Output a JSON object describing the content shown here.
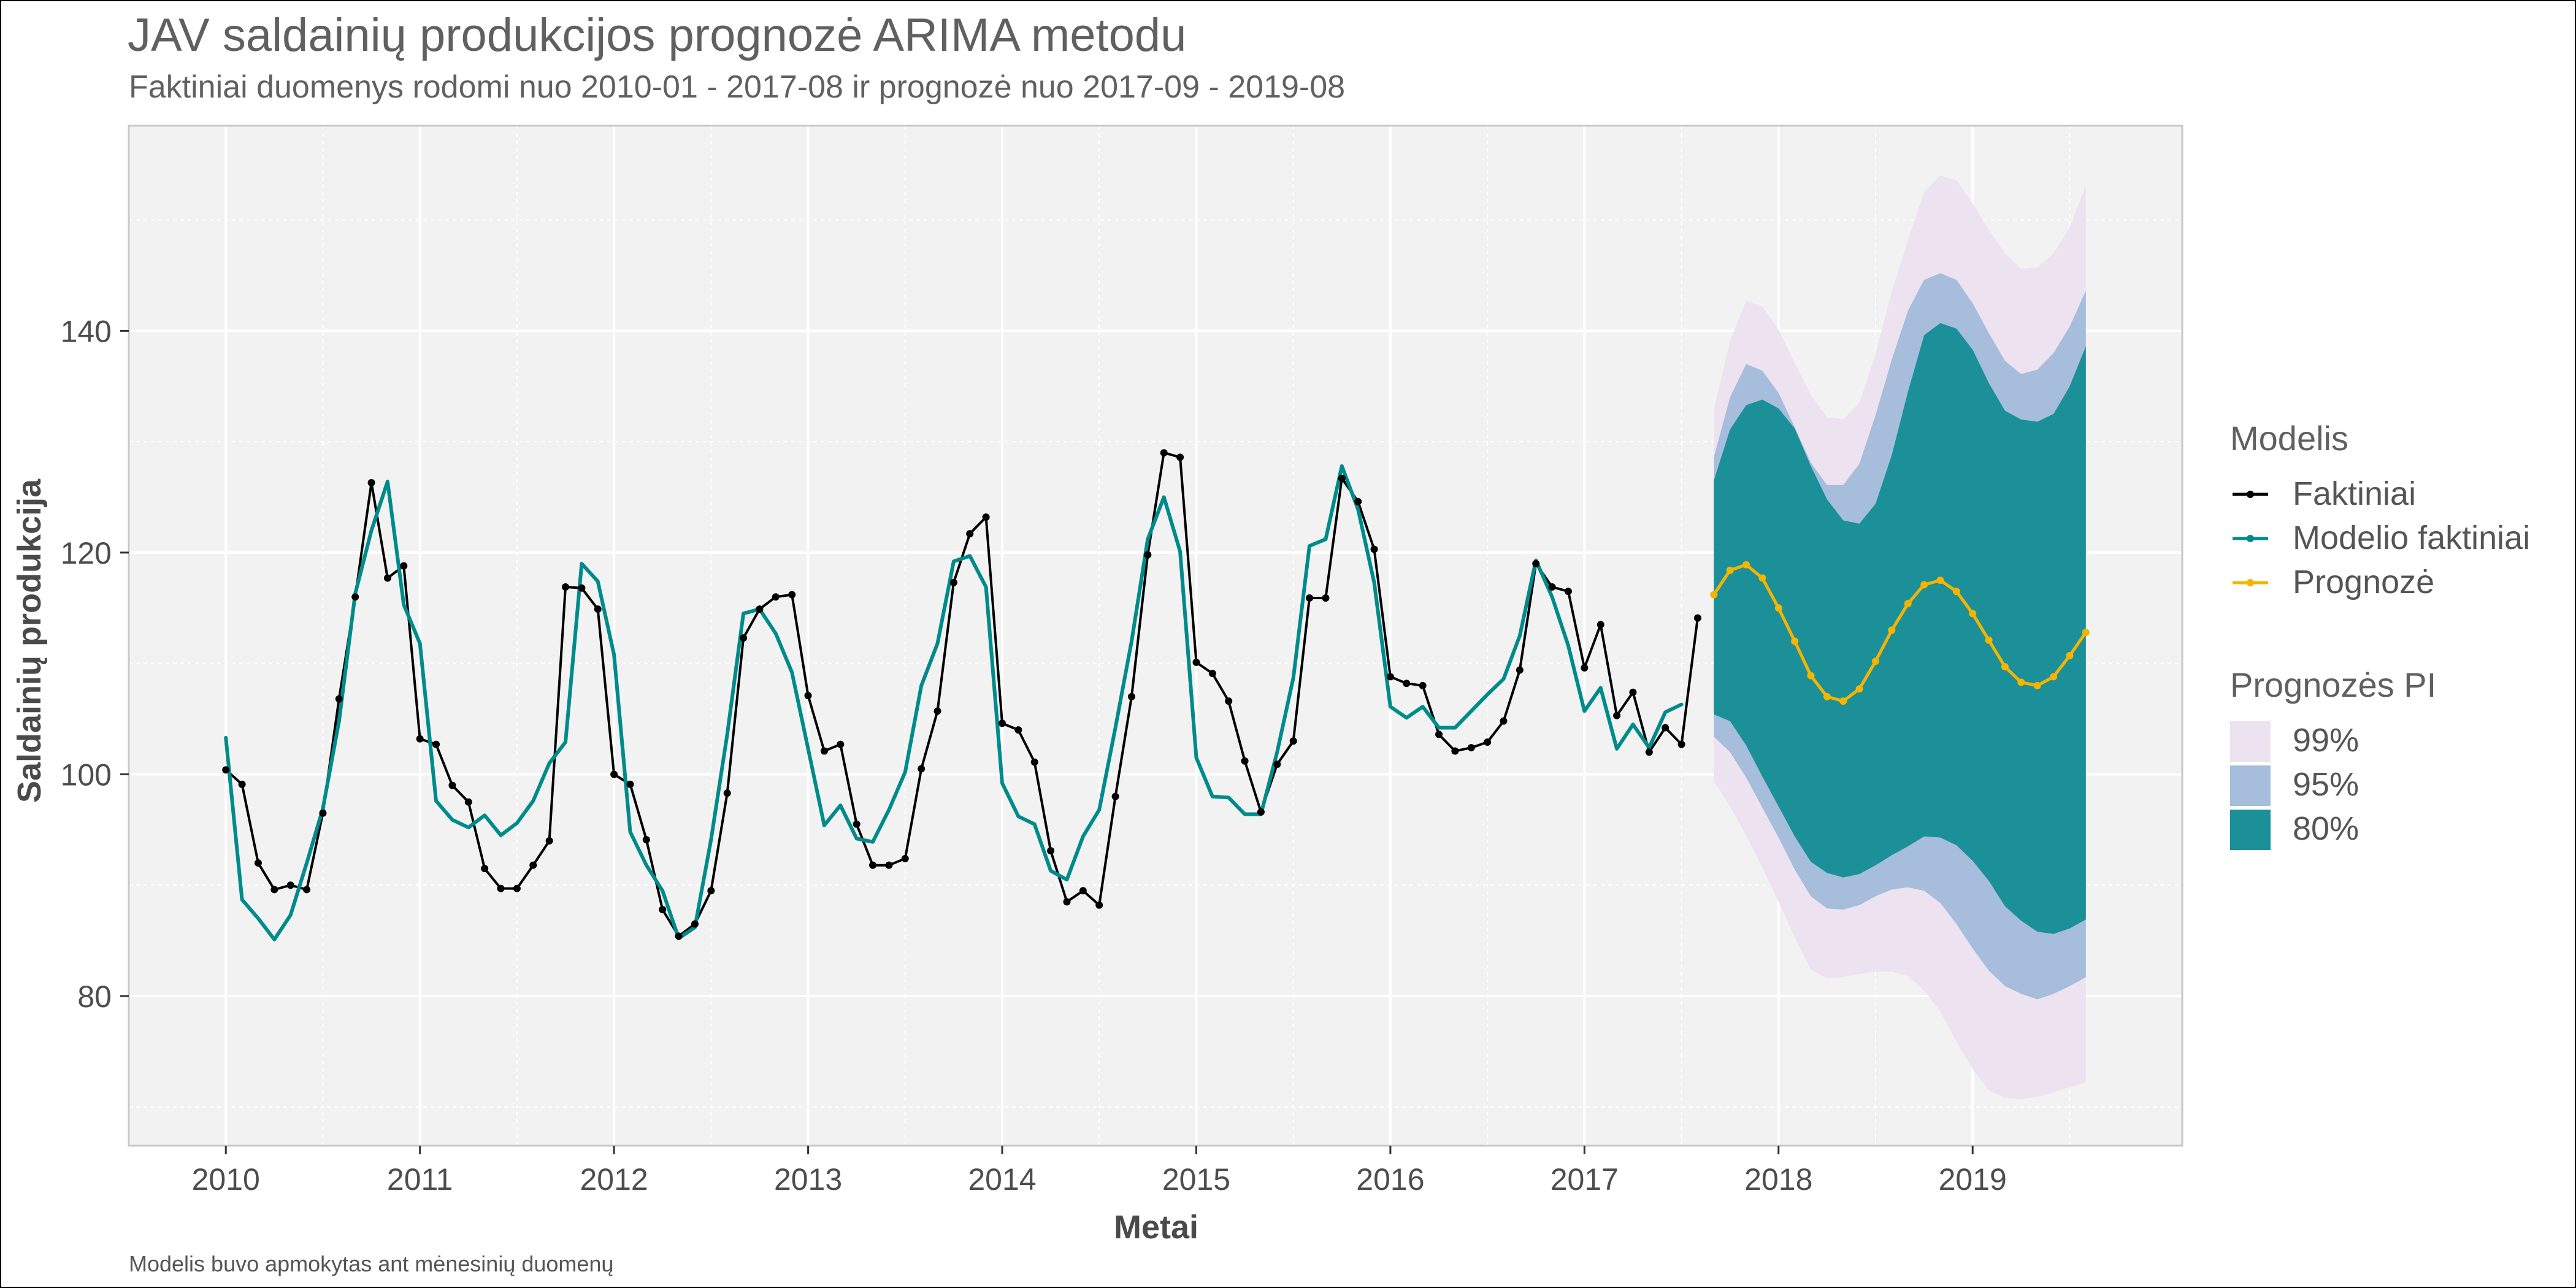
{
  "title": "JAV saldainių produkcijos prognozė ARIMA metodu",
  "subtitle": "Faktiniai duomenys rodomi nuo 2010-01 - 2017-08 ir prognozė nuo 2017-09 - 2019-08",
  "caption": "Modelis buvo apmokytas ant mėnesinių duomenų",
  "colors": {
    "faktiniai": "#000000",
    "modelio": "#008b8b",
    "prognoze": "#f5b400",
    "pi80": "#1c9099",
    "pi95": "#a6bddb",
    "pi99": "#ece2f0",
    "panel": "#f2f2f2",
    "grid": "#ffffff"
  },
  "chart_data": {
    "type": "line",
    "title": "JAV saldainių produkcijos prognozė ARIMA metodu",
    "subtitle": "Faktiniai duomenys rodomi nuo 2010-01 - 2017-08 ir prognozė nuo 2017-09 - 2019-08",
    "xlabel": "Metai",
    "ylabel": "Saldainių produkcija",
    "xlim": [
      2009.5,
      2020.08
    ],
    "ylim": [
      66.5,
      158.5
    ],
    "xticks": [
      "2010",
      "2011",
      "2012",
      "2013",
      "2014",
      "2015",
      "2016",
      "2017",
      "2018",
      "2019"
    ],
    "yticks": [
      "80",
      "100",
      "120",
      "140"
    ],
    "grid": true,
    "legend_position": "right",
    "legend": {
      "model_title": "Modelis",
      "model_items": [
        "Faktiniai",
        "Modelio faktiniai",
        "Prognozė"
      ],
      "pi_title": "Prognozės PI",
      "pi_items": [
        "99%",
        "95%",
        "80%"
      ]
    },
    "actual_start": "2010-01",
    "forecast_start": "2017-09",
    "series": [
      {
        "name": "Faktiniai",
        "values": [
          100.4,
          99.1,
          92.0,
          89.6,
          90.0,
          89.6,
          96.5,
          106.8,
          116.0,
          126.3,
          117.7,
          118.8,
          103.2,
          102.7,
          99.0,
          97.5,
          91.5,
          89.7,
          89.7,
          91.8,
          94.0,
          116.9,
          116.8,
          114.9,
          100.0,
          99.1,
          94.1,
          87.8,
          85.4,
          86.5,
          89.5,
          98.3,
          112.3,
          114.9,
          116.0,
          116.2,
          107.1,
          102.1,
          102.7,
          95.5,
          91.8,
          91.8,
          92.4,
          100.5,
          105.7,
          117.3,
          121.7,
          123.2,
          104.6,
          104.0,
          101.1,
          93.1,
          88.5,
          89.5,
          88.2,
          98.0,
          107.0,
          119.8,
          129.0,
          128.6,
          110.1,
          109.1,
          106.6,
          101.2,
          96.6,
          100.9,
          103.0,
          115.9,
          115.9,
          126.7,
          124.6,
          120.3,
          108.8,
          108.2,
          108.0,
          103.6,
          102.1,
          102.4,
          102.9,
          104.8,
          109.4,
          119.0,
          116.9,
          116.5,
          109.6,
          113.5,
          105.3,
          107.4,
          102.0,
          104.2,
          102.7,
          114.1
        ]
      },
      {
        "name": "Modelio faktiniai",
        "values": [
          103.3,
          88.7,
          87.0,
          85.1,
          87.3,
          92.0,
          96.9,
          104.8,
          116.3,
          122.0,
          126.4,
          115.3,
          111.8,
          97.6,
          95.9,
          95.2,
          96.3,
          94.5,
          95.6,
          97.6,
          101.0,
          102.9,
          119.0,
          117.4,
          110.8,
          94.8,
          91.8,
          89.5,
          85.2,
          86.2,
          94.1,
          103.6,
          114.5,
          114.9,
          112.7,
          109.2,
          102.3,
          95.4,
          97.2,
          94.2,
          93.9,
          96.8,
          100.2,
          108.0,
          111.8,
          119.2,
          119.7,
          116.9,
          99.2,
          96.2,
          95.5,
          91.3,
          90.5,
          94.4,
          96.8,
          104.2,
          112.0,
          121.2,
          125.0,
          120.1,
          101.5,
          98.0,
          97.9,
          96.4,
          96.4,
          102.0,
          108.7,
          120.6,
          121.2,
          127.8,
          123.9,
          117.3,
          106.1,
          105.1,
          106.1,
          104.2,
          104.2,
          105.7,
          107.2,
          108.6,
          112.5,
          119.3,
          116.0,
          111.6,
          105.7,
          107.8,
          102.3,
          104.5,
          102.4,
          105.6,
          106.3
        ]
      },
      {
        "name": "Prognozė",
        "values": [
          116.2,
          118.4,
          118.9,
          117.7,
          115.0,
          112.0,
          108.9,
          107.0,
          106.6,
          107.7,
          110.2,
          113.0,
          115.4,
          117.1,
          117.5,
          116.5,
          114.5,
          112.1,
          109.7,
          108.3,
          108.0,
          108.8,
          110.7,
          112.8
        ]
      }
    ],
    "intervals": [
      {
        "name": "99%",
        "upper": [
          132.9,
          139.1,
          142.7,
          142.2,
          140.1,
          137.1,
          134.2,
          132.2,
          132.0,
          133.5,
          137.9,
          143.5,
          148.2,
          152.5,
          154.0,
          153.6,
          151.5,
          149.1,
          147.0,
          145.6,
          145.7,
          147.0,
          149.3,
          153.1
        ],
        "lower": [
          99.4,
          97.1,
          94.5,
          91.6,
          88.5,
          85.3,
          82.4,
          81.6,
          81.7,
          82.0,
          82.2,
          82.2,
          81.8,
          80.5,
          78.6,
          75.9,
          73.4,
          71.5,
          70.8,
          70.7,
          70.9,
          71.3,
          71.8,
          72.2
        ]
      },
      {
        "name": "95%",
        "upper": [
          128.6,
          134.0,
          137.0,
          136.4,
          134.4,
          131.3,
          128.1,
          126.1,
          126.1,
          128.0,
          132.4,
          137.4,
          141.8,
          144.6,
          145.2,
          144.6,
          142.5,
          139.8,
          137.3,
          136.1,
          136.5,
          138.0,
          140.4,
          143.6
        ],
        "lower": [
          103.4,
          102.0,
          99.7,
          97.0,
          94.3,
          91.4,
          89.0,
          87.9,
          87.8,
          88.2,
          89.0,
          89.6,
          89.8,
          89.5,
          88.4,
          86.5,
          84.3,
          82.3,
          80.9,
          80.2,
          79.7,
          80.2,
          80.9,
          81.7
        ]
      },
      {
        "name": "80%",
        "upper": [
          126.5,
          131.1,
          133.3,
          133.8,
          133.0,
          131.2,
          127.8,
          124.8,
          122.9,
          122.6,
          124.4,
          128.8,
          134.5,
          139.6,
          140.7,
          140.2,
          138.3,
          135.3,
          132.8,
          132.0,
          131.8,
          132.5,
          135.0,
          138.6
        ],
        "lower": [
          105.4,
          104.8,
          102.6,
          99.8,
          97.1,
          94.4,
          92.1,
          91.1,
          90.7,
          91.0,
          91.8,
          92.7,
          93.5,
          94.4,
          94.3,
          93.6,
          92.2,
          90.4,
          88.1,
          86.8,
          85.8,
          85.6,
          86.1,
          86.9
        ]
      }
    ]
  }
}
